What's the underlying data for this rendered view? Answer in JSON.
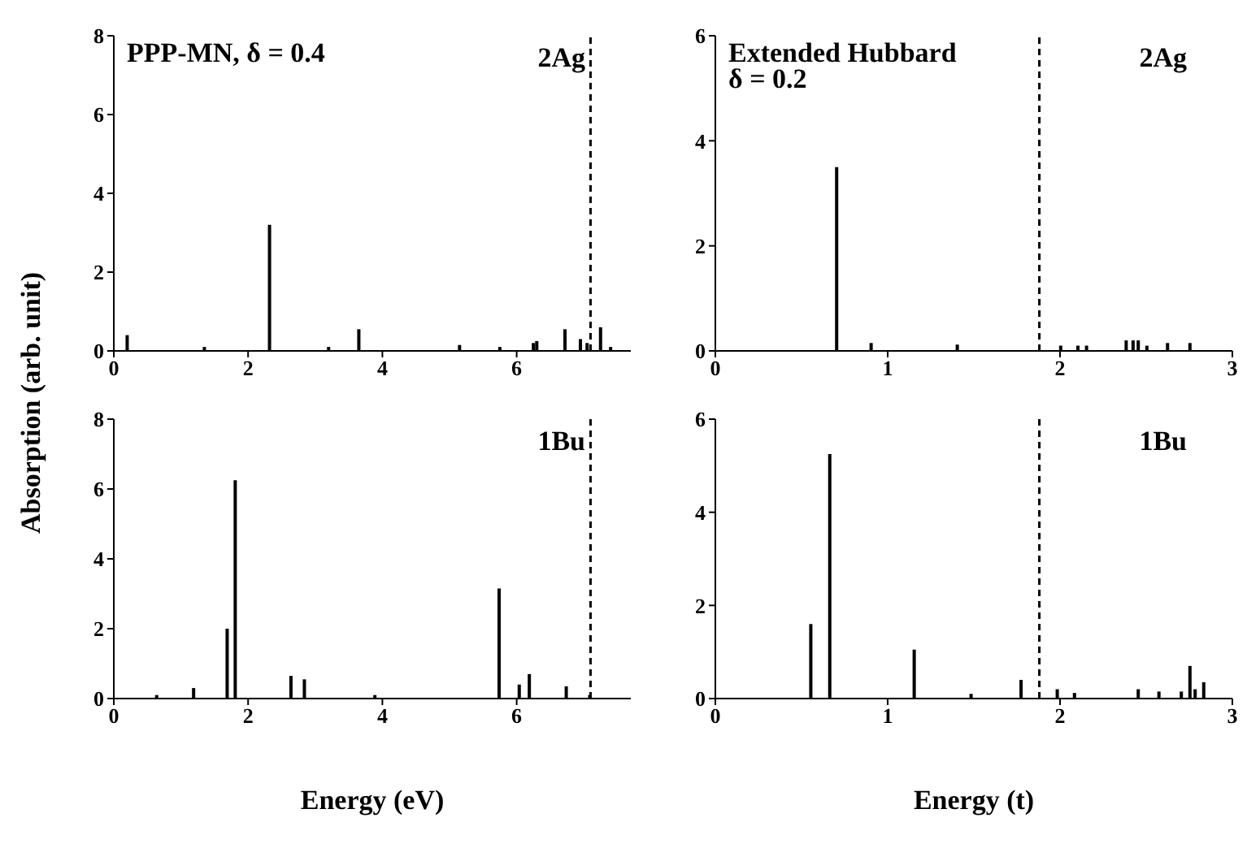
{
  "chart_data": [
    {
      "type": "bar",
      "ylabel": "Absorption (arb. unit)",
      "annotations": [
        "PPP-MN, δ = 0.4",
        "2Ag"
      ],
      "color": "#000000",
      "x": [
        0.2,
        1.35,
        2.32,
        3.2,
        3.65,
        5.15,
        5.75,
        6.25,
        6.3,
        6.72,
        6.95,
        7.05,
        7.25,
        7.4
      ],
      "values": [
        0.4,
        0.1,
        3.2,
        0.1,
        0.55,
        0.15,
        0.1,
        0.2,
        0.25,
        0.55,
        0.3,
        0.2,
        0.6,
        0.1
      ],
      "xlim": [
        0,
        7.7
      ],
      "xticks": [
        0,
        2,
        4,
        6
      ],
      "ylim": [
        0,
        8
      ],
      "yticks": [
        0,
        2,
        4,
        6,
        8
      ],
      "ref_lines": [
        {
          "axis": "x",
          "value": 7.1,
          "line_style": "dashed"
        }
      ]
    },
    {
      "type": "bar",
      "annotations": [
        "Extended Hubbard",
        "δ = 0.2",
        "2Ag"
      ],
      "color": "#000000",
      "x": [
        0.7,
        0.9,
        1.4,
        2.0,
        2.1,
        2.15,
        2.38,
        2.42,
        2.45,
        2.5,
        2.62,
        2.75
      ],
      "values": [
        3.5,
        0.15,
        0.12,
        0.1,
        0.1,
        0.1,
        0.2,
        0.2,
        0.2,
        0.1,
        0.15,
        0.15
      ],
      "xlim": [
        0,
        3
      ],
      "xticks": [
        0,
        1,
        2,
        3
      ],
      "ylim": [
        0,
        6
      ],
      "yticks": [
        0,
        2,
        4,
        6
      ],
      "ref_lines": [
        {
          "axis": "x",
          "value": 1.88,
          "line_style": "dashed"
        }
      ]
    },
    {
      "type": "bar",
      "xlabel": "Energy (eV)",
      "annotations": [
        "1Bu"
      ],
      "color": "#000000",
      "x": [
        0.65,
        1.2,
        1.7,
        1.82,
        2.65,
        2.85,
        3.9,
        5.75,
        6.05,
        6.2,
        6.75,
        7.1
      ],
      "values": [
        0.1,
        0.3,
        2.0,
        6.25,
        0.65,
        0.55,
        0.1,
        3.15,
        0.4,
        0.7,
        0.35,
        0.1
      ],
      "xlim": [
        0,
        7.7
      ],
      "xticks": [
        0,
        2,
        4,
        6
      ],
      "ylim": [
        0,
        8
      ],
      "yticks": [
        0,
        2,
        4,
        6,
        8
      ],
      "ref_lines": [
        {
          "axis": "x",
          "value": 7.1,
          "line_style": "dashed"
        }
      ]
    },
    {
      "type": "bar",
      "xlabel": "Energy (t)",
      "annotations": [
        "1Bu"
      ],
      "color": "#000000",
      "x": [
        0.55,
        0.66,
        1.15,
        1.48,
        1.77,
        1.98,
        2.08,
        2.45,
        2.57,
        2.7,
        2.75,
        2.78,
        2.83
      ],
      "values": [
        1.6,
        5.25,
        1.05,
        0.1,
        0.4,
        0.2,
        0.12,
        0.2,
        0.15,
        0.15,
        0.7,
        0.2,
        0.35
      ],
      "xlim": [
        0,
        3
      ],
      "xticks": [
        0,
        1,
        2,
        3
      ],
      "ylim": [
        0,
        6
      ],
      "yticks": [
        0,
        2,
        4,
        6
      ],
      "ref_lines": [
        {
          "axis": "x",
          "value": 1.88,
          "line_style": "dashed"
        }
      ]
    }
  ]
}
